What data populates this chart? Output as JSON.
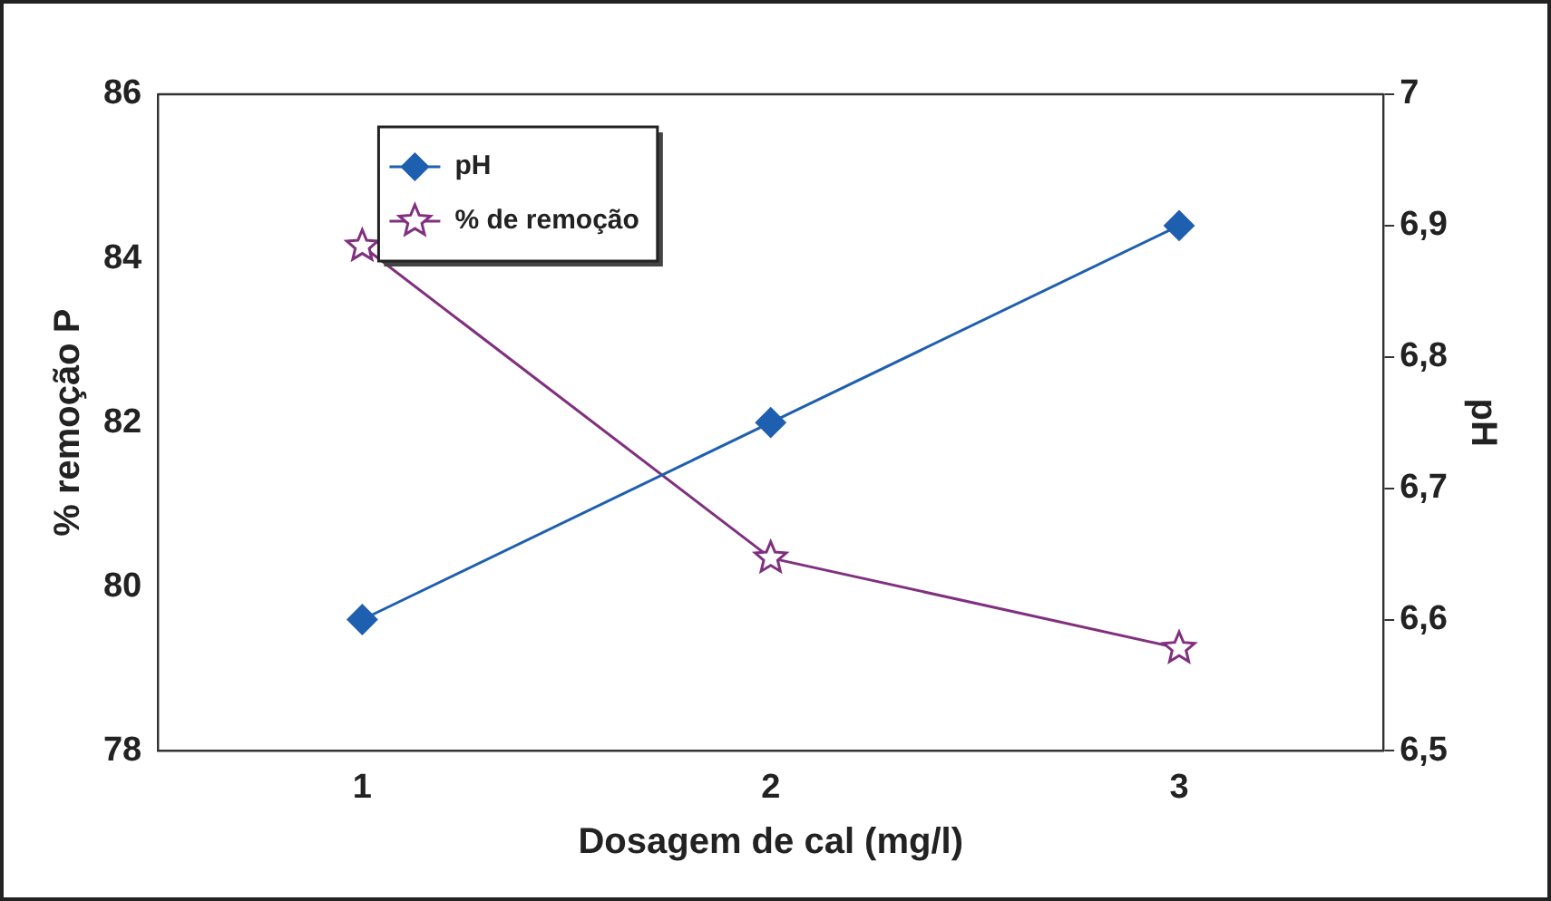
{
  "chart_data": {
    "type": "line",
    "categories": [
      "1",
      "2",
      "3"
    ],
    "xlabel": "Dosagem de cal (mg/l)",
    "ylabel": "% remoção P",
    "y2label": "pH",
    "series": [
      {
        "name": "pH",
        "color": "#1f5fb0",
        "values": [
          6.6,
          6.75,
          6.9
        ],
        "axis": "y2",
        "marker": "diamond"
      },
      {
        "name": "% de remoção",
        "color": "#80307f",
        "values": [
          84.15,
          80.35,
          79.25
        ],
        "marker": "star"
      }
    ],
    "ylim": [
      78,
      86
    ],
    "yticks": [
      78,
      80,
      82,
      84,
      86
    ],
    "y2lim": [
      6.5,
      7
    ],
    "y2ticks": [
      {
        "value": 6.5,
        "label": "6,5"
      },
      {
        "value": 6.6,
        "label": "6,6"
      },
      {
        "value": 6.7,
        "label": "6,7"
      },
      {
        "value": 6.8,
        "label": "6,8"
      },
      {
        "value": 6.9,
        "label": "6,9"
      },
      {
        "value": 7,
        "label": "7"
      }
    ],
    "legend": "top left",
    "grid": false,
    "line_style": "solid"
  }
}
